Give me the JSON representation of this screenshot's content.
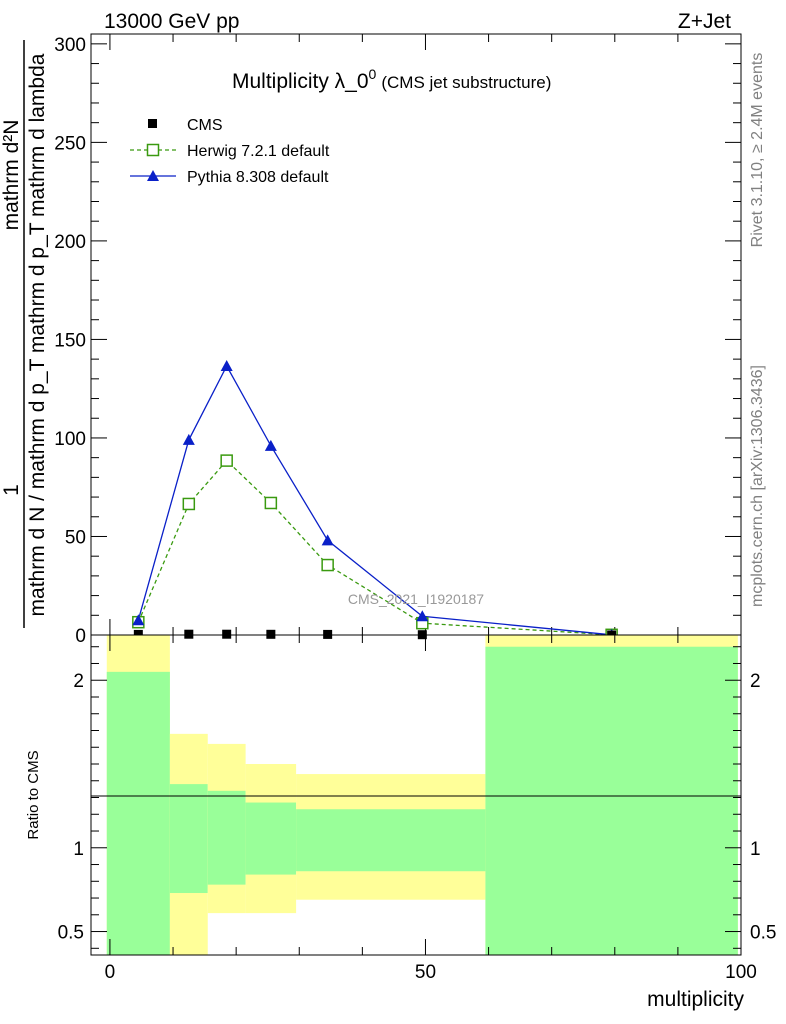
{
  "header": {
    "left": "13000 GeV pp",
    "right": "Z+Jet"
  },
  "title": {
    "main": "Multiplicity λ_0",
    "sup": "0",
    "sub": "(CMS jet substructure)"
  },
  "watermark": "CMS_2021_I1920187",
  "side_labels": {
    "rivet": "Rivet 3.1.10, ≥ 2.4M events",
    "mcplots": "mcplots.cern.ch [arXiv:1306.3436]"
  },
  "colors": {
    "herwig": "#3a9a10",
    "pythia": "#0a20c8",
    "band_outer": "#ffff99",
    "band_inner": "#99ff99"
  },
  "chart_data": [
    {
      "type": "line",
      "ylabel_top": "1",
      "ylabel_bottom": "mathrm d N / mathrm d p_T mathrm d p_T mathrm d lambda",
      "ylabel_right": "mathrm d²N",
      "xlim": [
        -3,
        100
      ],
      "ylim": [
        0,
        305
      ],
      "yticks": [
        0,
        50,
        100,
        150,
        200,
        250,
        300
      ],
      "legend": [
        {
          "key": "cms",
          "label": "CMS"
        },
        {
          "key": "herwig",
          "label": "Herwig 7.2.1 default"
        },
        {
          "key": "pythia",
          "label": "Pythia 8.308 default"
        }
      ],
      "legend_position": "top-left",
      "series": [
        {
          "name": "CMS",
          "marker": "square",
          "x": [
            4.5,
            12.5,
            18.5,
            25.5,
            34.5,
            49.5,
            79.5
          ],
          "y": [
            0.3,
            0.4,
            0.4,
            0.35,
            0.3,
            0.15,
            0.01
          ]
        },
        {
          "name": "Herwig 7.2.1 default",
          "marker": "open-square",
          "style": "dashed",
          "x": [
            4.5,
            12.5,
            18.5,
            25.5,
            34.5,
            49.5,
            79.5
          ],
          "y": [
            6.5,
            66.5,
            88.5,
            67,
            35.5,
            6,
            0.1
          ]
        },
        {
          "name": "Pythia 8.308 default",
          "marker": "triangle",
          "style": "solid",
          "x": [
            4.5,
            12.5,
            18.5,
            25.5,
            34.5,
            49.5,
            79.5
          ],
          "y": [
            7.5,
            99,
            136.5,
            96,
            48,
            9.5,
            0.1
          ]
        }
      ]
    },
    {
      "type": "area",
      "xlabel": "multiplicity",
      "ylabel": "Ratio to CMS",
      "xlim": [
        -3,
        100
      ],
      "ylim": [
        0.36,
        2.27
      ],
      "xticks": [
        0,
        50,
        100
      ],
      "yticks": [
        0.5,
        1,
        2
      ],
      "reference": 1,
      "bands": [
        {
          "x0": -0.5,
          "x1": 9.5,
          "outer": [
            0.36,
            2.27
          ],
          "inner": [
            0.36,
            2.05
          ]
        },
        {
          "x0": 9.5,
          "x1": 15.5,
          "outer": [
            0.36,
            1.68
          ],
          "inner": [
            0.73,
            1.38
          ]
        },
        {
          "x0": 15.5,
          "x1": 21.5,
          "outer": [
            0.61,
            1.62
          ],
          "inner": [
            0.78,
            1.34
          ]
        },
        {
          "x0": 21.5,
          "x1": 29.5,
          "outer": [
            0.61,
            1.5
          ],
          "inner": [
            0.84,
            1.27
          ]
        },
        {
          "x0": 29.5,
          "x1": 59.5,
          "outer": [
            0.69,
            1.44
          ],
          "inner": [
            0.86,
            1.23
          ]
        },
        {
          "x0": 59.5,
          "x1": 99.5,
          "outer": [
            0.36,
            2.27
          ],
          "inner": [
            0.36,
            2.2
          ]
        }
      ]
    }
  ]
}
